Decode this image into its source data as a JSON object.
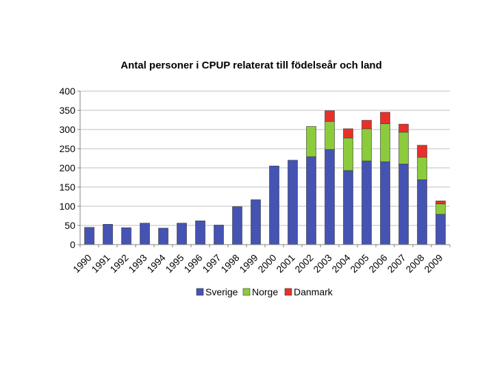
{
  "chart_data": {
    "type": "bar",
    "stacked": true,
    "title": "Antal personer i CPUP relaterat till födelseår och land",
    "xlabel": "",
    "ylabel": "",
    "ylim": [
      0,
      400
    ],
    "yticks": [
      0,
      50,
      100,
      150,
      200,
      250,
      300,
      350,
      400
    ],
    "grid": true,
    "legend_position": "bottom",
    "categories": [
      "1990",
      "1991",
      "1992",
      "1993",
      "1994",
      "1995",
      "1996",
      "1997",
      "1998",
      "1999",
      "2000",
      "2001",
      "2002",
      "2003",
      "2004",
      "2005",
      "2006",
      "2007",
      "2008",
      "2009"
    ],
    "series": [
      {
        "name": "Sverige",
        "color": "#4553B3",
        "values": [
          45,
          53,
          44,
          56,
          43,
          56,
          62,
          51,
          99,
          117,
          205,
          220,
          229,
          248,
          193,
          218,
          216,
          210,
          169,
          79
        ]
      },
      {
        "name": "Norge",
        "color": "#8CCB3C",
        "values": [
          0,
          0,
          0,
          0,
          0,
          0,
          0,
          0,
          0,
          0,
          0,
          0,
          79,
          73,
          85,
          84,
          99,
          83,
          59,
          27
        ]
      },
      {
        "name": "Danmark",
        "color": "#E8302A",
        "values": [
          0,
          0,
          0,
          0,
          0,
          0,
          0,
          0,
          0,
          0,
          0,
          0,
          0,
          28,
          24,
          22,
          30,
          21,
          31,
          8
        ]
      }
    ]
  }
}
